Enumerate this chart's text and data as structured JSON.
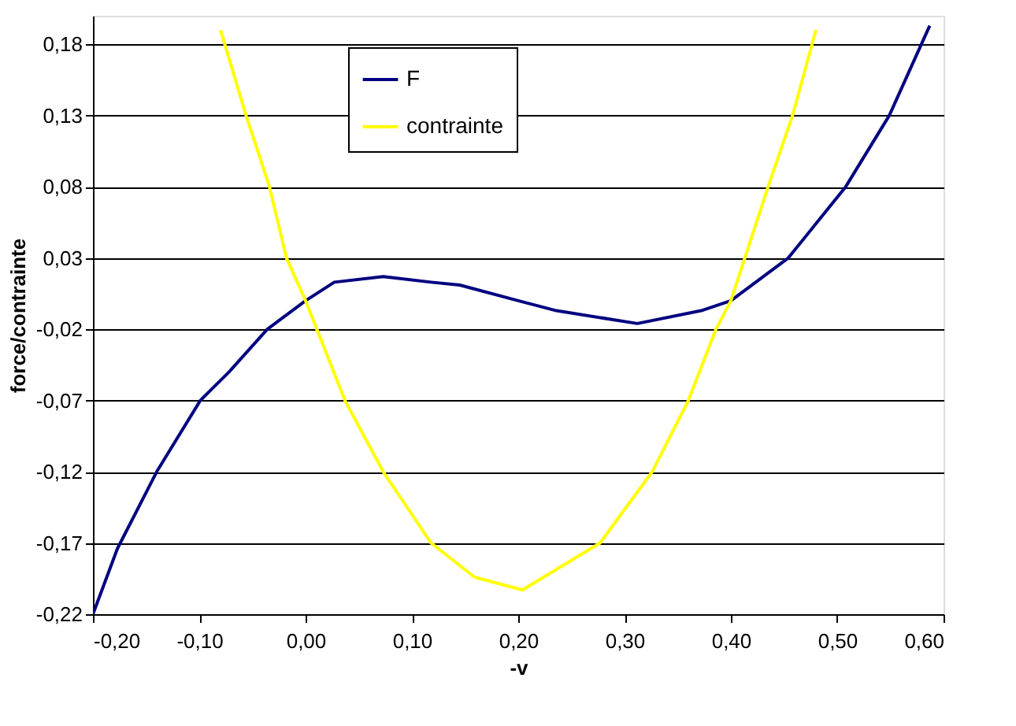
{
  "chart_data": {
    "type": "line",
    "xlabel": "-v",
    "ylabel": "force/contrainte",
    "xlim": [
      -0.2,
      0.6
    ],
    "ylim": [
      -0.22,
      0.2
    ],
    "xticks": [
      {
        "value": -0.2,
        "label": "-0,20"
      },
      {
        "value": -0.1,
        "label": "-0,10"
      },
      {
        "value": 0,
        "label": "0,00"
      },
      {
        "value": 0.1,
        "label": "0,10"
      },
      {
        "value": 0.2,
        "label": "0,20"
      },
      {
        "value": 0.3,
        "label": "0,30"
      },
      {
        "value": 0.4,
        "label": "0,40"
      },
      {
        "value": 0.5,
        "label": "0,50"
      },
      {
        "value": 0.6,
        "label": "0,60"
      }
    ],
    "yticks": [
      {
        "value": 0.18,
        "label": "0,18"
      },
      {
        "value": 0.13,
        "label": "0,13"
      },
      {
        "value": 0.08,
        "label": "0,08"
      },
      {
        "value": 0.03,
        "label": "0,03"
      },
      {
        "value": -0.02,
        "label": "-0,02"
      },
      {
        "value": -0.07,
        "label": "-0,07"
      },
      {
        "value": -0.12,
        "label": "-0,12"
      },
      {
        "value": -0.17,
        "label": "-0,17"
      },
      {
        "value": -0.22,
        "label": "-0,22"
      }
    ],
    "grid": "y",
    "legend": "top",
    "marker": "none",
    "line_style": "solid",
    "series": [
      {
        "name": "F",
        "color": "#000080",
        "x": [
          -0.2,
          -0.177,
          -0.14,
          -0.099,
          -0.072,
          -0.036,
          0,
          0.027,
          0.073,
          0.118,
          0.145,
          0.2,
          0.236,
          0.312,
          0.372,
          0.4,
          0.454,
          0.508,
          0.549,
          0.587
        ],
        "values": [
          -0.22,
          -0.174,
          -0.12,
          -0.07,
          -0.05,
          -0.02,
          0,
          0.013,
          0.017,
          0.013,
          0.011,
          0,
          -0.007,
          -0.016,
          -0.007,
          0,
          0.03,
          0.08,
          0.13,
          0.193
        ]
      },
      {
        "name": "contrainte",
        "color": "#ffff00",
        "x": [
          -0.08,
          -0.056,
          -0.034,
          -0.018,
          0,
          0.037,
          0.073,
          0.118,
          0.159,
          0.204,
          0.277,
          0.326,
          0.36,
          0.386,
          0.4,
          0.435,
          0.458,
          0.48
        ],
        "values": [
          0.19,
          0.13,
          0.08,
          0.03,
          0,
          -0.07,
          -0.12,
          -0.17,
          -0.194,
          -0.203,
          -0.17,
          -0.12,
          -0.07,
          -0.02,
          0,
          0.08,
          0.13,
          0.19
        ]
      }
    ]
  }
}
